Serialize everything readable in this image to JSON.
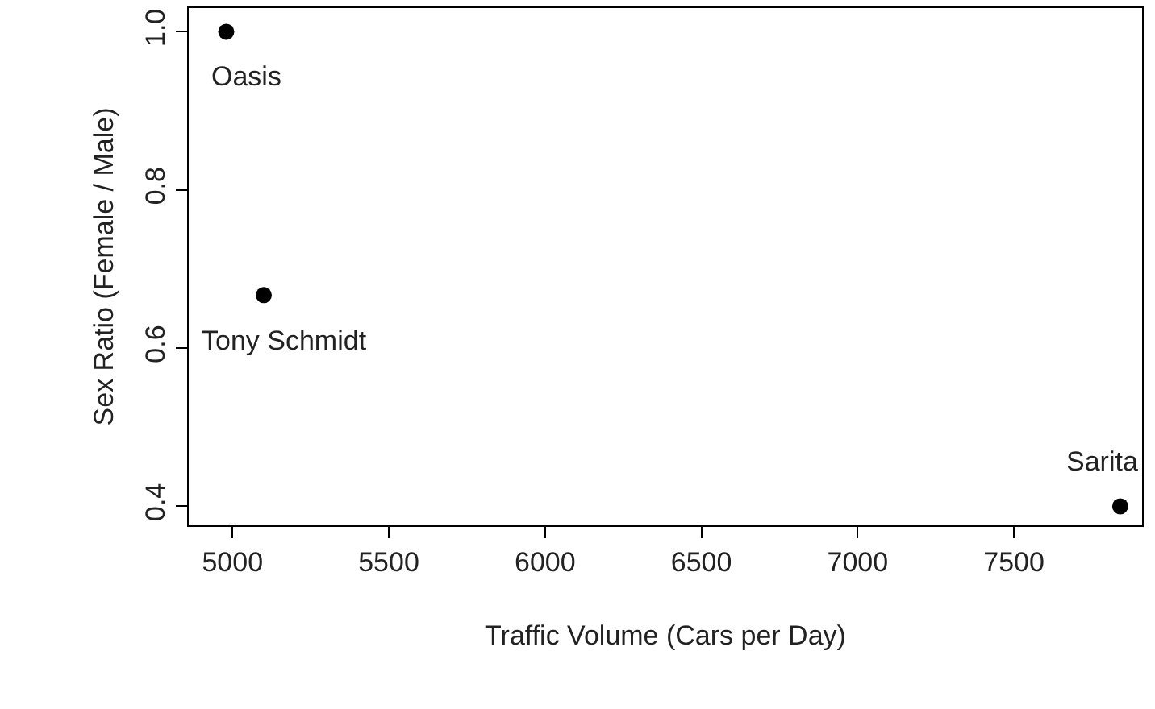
{
  "chart_data": {
    "type": "scatter",
    "xlabel": "Traffic Volume (Cars per Day)",
    "ylabel": "Sex Ratio (Female / Male)",
    "x": [
      4980,
      5100,
      7840
    ],
    "values": [
      1.0,
      0.667,
      0.4
    ],
    "color": "#000000",
    "marker": "circle",
    "xlim": [
      4860,
      7910
    ],
    "ylim": [
      0.376,
      1.03
    ],
    "xticks": [
      5000,
      5500,
      6000,
      6500,
      7000,
      7500
    ],
    "yticks": [
      {
        "value": 0.4,
        "label": "0.4"
      },
      {
        "value": 0.6,
        "label": "0.6"
      },
      {
        "value": 0.8,
        "label": "0.8"
      },
      {
        "value": 1.0,
        "label": "1.0"
      }
    ],
    "annotations": [
      {
        "text": "Oasis",
        "x": 4980,
        "y": 1.0
      },
      {
        "text": "Tony Schmidt",
        "x": 5100,
        "y": 0.667
      },
      {
        "text": "Sarita",
        "x": 7840,
        "y": 0.4
      }
    ]
  }
}
